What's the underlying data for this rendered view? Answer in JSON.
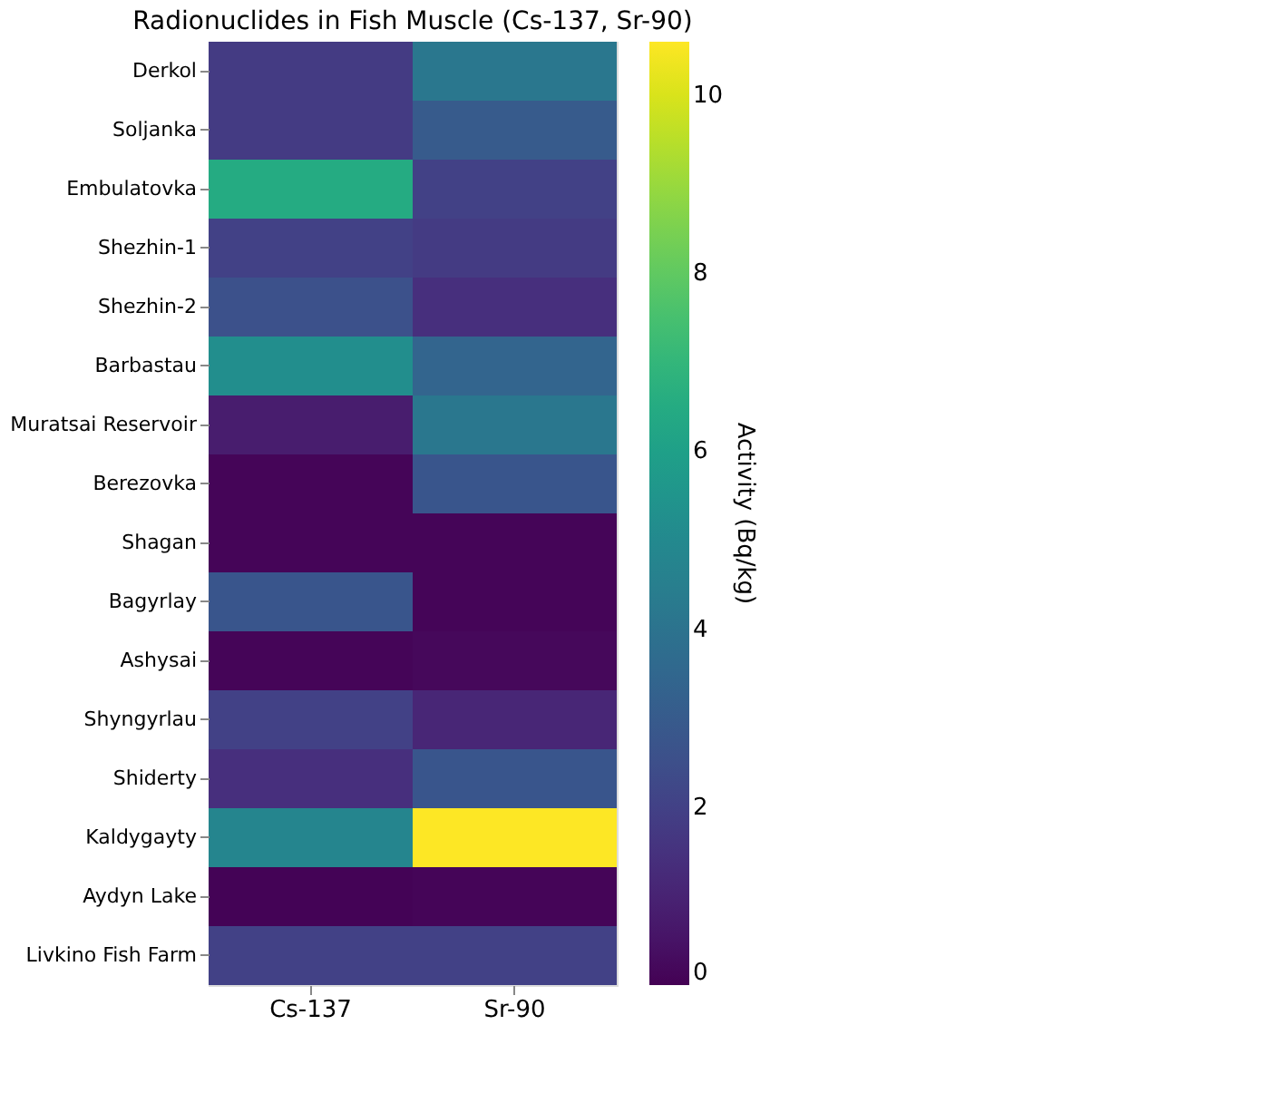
{
  "chart_data": {
    "type": "heatmap",
    "title": "Radionuclides in Fish Muscle (Cs-137, Sr-90)",
    "categories": [
      "Cs-137",
      "Sr-90"
    ],
    "y_categories": [
      "Derkol",
      "Soljanka",
      "Embulatovka",
      "Shezhin-1",
      "Shezhin-2",
      "Barbastau",
      "Muratsai Reservoir",
      "Berezovka",
      "Shagan",
      "Bagyrlay",
      "Ashysai",
      "Shyngyrlau",
      "Shiderty",
      "Kaldygayty",
      "Aydyn Lake",
      "Livkino Fish Farm"
    ],
    "cells": [
      [
        1.8,
        4.2
      ],
      [
        1.8,
        3.0
      ],
      [
        6.5,
        2.0
      ],
      [
        2.0,
        1.8
      ],
      [
        2.6,
        1.4
      ],
      [
        5.2,
        3.4
      ],
      [
        0.8,
        4.2
      ],
      [
        0.1,
        2.8
      ],
      [
        0.1,
        0.1
      ],
      [
        2.8,
        0.1
      ],
      [
        0.1,
        0.2
      ],
      [
        2.0,
        1.1
      ],
      [
        1.4,
        2.8
      ],
      [
        4.8,
        10.6
      ],
      [
        0.05,
        0.1
      ],
      [
        2.0,
        2.0
      ]
    ],
    "clim": [
      0,
      10.6
    ],
    "cticks": [
      0,
      2,
      4,
      6,
      8,
      10
    ],
    "clabel": "Activity (Bq/kg)"
  }
}
